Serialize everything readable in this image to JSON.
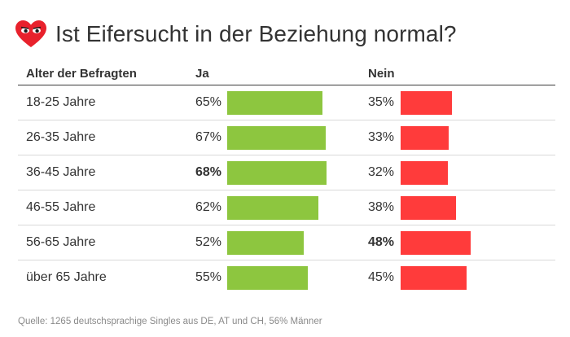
{
  "header": {
    "title": "Ist Eifersucht in der Beziehung normal?",
    "logo_icon": "heart-with-eyes-icon",
    "logo_color": "#e8212c"
  },
  "colors": {
    "ja": "#8dc63f",
    "nein": "#ff3b3b"
  },
  "chart_data": {
    "type": "table",
    "title": "Ist Eifersucht in der Beziehung normal?",
    "columns": [
      "Alter der Befragten",
      "Ja",
      "Nein"
    ],
    "rows": [
      {
        "age": "18-25 Jahre",
        "ja": 65,
        "ja_label": "65%",
        "nein": 35,
        "nein_label": "35%",
        "ja_bold": false,
        "nein_bold": false
      },
      {
        "age": "26-35 Jahre",
        "ja": 67,
        "ja_label": "67%",
        "nein": 33,
        "nein_label": "33%",
        "ja_bold": false,
        "nein_bold": false
      },
      {
        "age": "36-45 Jahre",
        "ja": 68,
        "ja_label": "68%",
        "nein": 32,
        "nein_label": "32%",
        "ja_bold": true,
        "nein_bold": false
      },
      {
        "age": "46-55 Jahre",
        "ja": 62,
        "ja_label": "62%",
        "nein": 38,
        "nein_label": "38%",
        "ja_bold": false,
        "nein_bold": false
      },
      {
        "age": "56-65 Jahre",
        "ja": 52,
        "ja_label": "52%",
        "nein": 48,
        "nein_label": "48%",
        "ja_bold": false,
        "nein_bold": true
      },
      {
        "age": "über 65 Jahre",
        "ja": 55,
        "ja_label": "55%",
        "nein": 45,
        "nein_label": "45%",
        "ja_bold": false,
        "nein_bold": false
      }
    ]
  },
  "source": "Quelle: 1265 deutschsprachige Singles aus DE, AT und CH, 56% Männer"
}
